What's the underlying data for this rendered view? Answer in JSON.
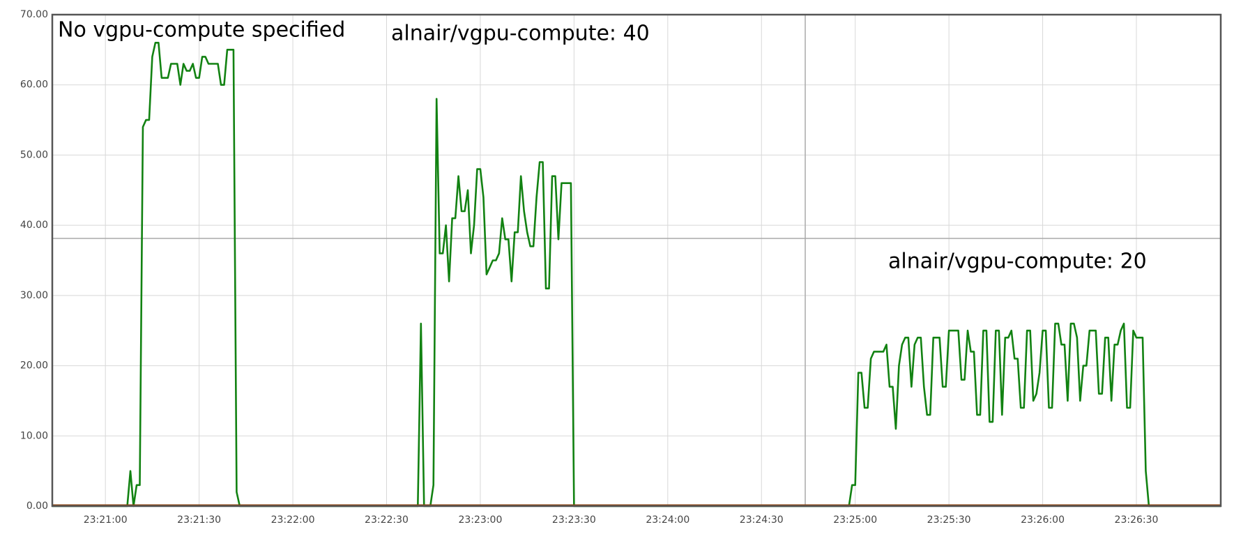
{
  "chart_data": {
    "type": "line",
    "annotations": [
      "No vgpu-compute specified",
      "alnair/vgpu-compute: 40",
      "alnair/vgpu-compute: 20"
    ],
    "xlim": [
      "23:20:43",
      "23:26:57"
    ],
    "xticks": [
      "23:21:00",
      "23:21:30",
      "23:22:00",
      "23:22:30",
      "23:23:00",
      "23:23:30",
      "23:24:00",
      "23:24:30",
      "23:25:00",
      "23:25:30",
      "23:26:00",
      "23:26:30"
    ],
    "ylim": [
      0,
      70
    ],
    "yticks": [
      {
        "value": 0,
        "label": "0.00"
      },
      {
        "value": 10,
        "label": "10.00"
      },
      {
        "value": 20,
        "label": "20.00"
      },
      {
        "value": 30,
        "label": "30.00"
      },
      {
        "value": 40,
        "label": "40.00"
      },
      {
        "value": 50,
        "label": "50.00"
      },
      {
        "value": 60,
        "label": "60.00"
      },
      {
        "value": 70,
        "label": "70.00"
      }
    ],
    "grid": true,
    "x": [
      "23:20:43",
      "23:21:07",
      "23:21:08",
      "23:21:09",
      "23:21:10",
      "23:21:11",
      "23:21:12",
      "23:21:13",
      "23:21:14",
      "23:21:15",
      "23:21:16",
      "23:21:17",
      "23:21:18",
      "23:21:19",
      "23:21:20",
      "23:21:21",
      "23:21:22",
      "23:21:23",
      "23:21:24",
      "23:21:25",
      "23:21:26",
      "23:21:27",
      "23:21:28",
      "23:21:29",
      "23:21:30",
      "23:21:31",
      "23:21:32",
      "23:21:33",
      "23:21:34",
      "23:21:35",
      "23:21:36",
      "23:21:37",
      "23:21:38",
      "23:21:39",
      "23:21:40",
      "23:21:41",
      "23:21:42",
      "23:21:43",
      "23:22:40",
      "23:22:41",
      "23:22:42",
      "23:22:43",
      "23:22:44",
      "23:22:45",
      "23:22:46",
      "23:22:47",
      "23:22:48",
      "23:22:49",
      "23:22:50",
      "23:22:51",
      "23:22:52",
      "23:22:53",
      "23:22:54",
      "23:22:55",
      "23:22:56",
      "23:22:57",
      "23:22:58",
      "23:22:59",
      "23:23:00",
      "23:23:01",
      "23:23:02",
      "23:23:03",
      "23:23:04",
      "23:23:05",
      "23:23:06",
      "23:23:07",
      "23:23:08",
      "23:23:09",
      "23:23:10",
      "23:23:11",
      "23:23:12",
      "23:23:13",
      "23:23:14",
      "23:23:15",
      "23:23:16",
      "23:23:17",
      "23:23:18",
      "23:23:19",
      "23:23:20",
      "23:23:21",
      "23:23:22",
      "23:23:23",
      "23:23:24",
      "23:23:25",
      "23:23:26",
      "23:23:27",
      "23:23:28",
      "23:23:29",
      "23:23:30",
      "23:24:58",
      "23:24:59",
      "23:25:00",
      "23:25:01",
      "23:25:02",
      "23:25:03",
      "23:25:04",
      "23:25:05",
      "23:25:06",
      "23:25:07",
      "23:25:08",
      "23:25:09",
      "23:25:10",
      "23:25:11",
      "23:25:12",
      "23:25:13",
      "23:25:14",
      "23:25:15",
      "23:25:16",
      "23:25:17",
      "23:25:18",
      "23:25:19",
      "23:25:20",
      "23:25:21",
      "23:25:22",
      "23:25:23",
      "23:25:24",
      "23:25:25",
      "23:25:26",
      "23:25:27",
      "23:25:28",
      "23:25:29",
      "23:25:30",
      "23:25:31",
      "23:25:32",
      "23:25:33",
      "23:25:34",
      "23:25:35",
      "23:25:36",
      "23:25:37",
      "23:25:38",
      "23:25:39",
      "23:25:40",
      "23:25:41",
      "23:25:42",
      "23:25:43",
      "23:25:44",
      "23:25:45",
      "23:25:46",
      "23:25:47",
      "23:25:48",
      "23:25:49",
      "23:25:50",
      "23:25:51",
      "23:25:52",
      "23:25:53",
      "23:25:54",
      "23:25:55",
      "23:25:56",
      "23:25:57",
      "23:25:58",
      "23:25:59",
      "23:26:00",
      "23:26:01",
      "23:26:02",
      "23:26:03",
      "23:26:04",
      "23:26:05",
      "23:26:06",
      "23:26:07",
      "23:26:08",
      "23:26:09",
      "23:26:10",
      "23:26:11",
      "23:26:12",
      "23:26:13",
      "23:26:14",
      "23:26:15",
      "23:26:16",
      "23:26:17",
      "23:26:18",
      "23:26:19",
      "23:26:20",
      "23:26:21",
      "23:26:22",
      "23:26:23",
      "23:26:24",
      "23:26:25",
      "23:26:26",
      "23:26:27",
      "23:26:28",
      "23:26:29",
      "23:26:30",
      "23:26:31",
      "23:26:32",
      "23:26:33",
      "23:26:34",
      "23:26:57"
    ],
    "series": [
      {
        "color": "#128212",
        "values": [
          0,
          0,
          5,
          0,
          3,
          3,
          54,
          55,
          55,
          64,
          66,
          66,
          61,
          61,
          61,
          63,
          63,
          63,
          60,
          63,
          62,
          62,
          63,
          61,
          61,
          64,
          64,
          63,
          63,
          63,
          63,
          60,
          60,
          65,
          65,
          65,
          2,
          0,
          0,
          26,
          0,
          0,
          0,
          3,
          58,
          36,
          36,
          40,
          32,
          41,
          41,
          47,
          42,
          42,
          45,
          36,
          40,
          48,
          48,
          44,
          33,
          34,
          35,
          35,
          36,
          41,
          38,
          38,
          32,
          39,
          39,
          47,
          42,
          39,
          37,
          37,
          44,
          49,
          49,
          31,
          31,
          47,
          47,
          38,
          46,
          46,
          46,
          46,
          0,
          0,
          3,
          3,
          19,
          19,
          14,
          14,
          21,
          22,
          22,
          22,
          22,
          23,
          17,
          17,
          11,
          20,
          23,
          24,
          24,
          17,
          23,
          24,
          24,
          17,
          13,
          13,
          24,
          24,
          24,
          17,
          17,
          25,
          25,
          25,
          25,
          18,
          18,
          25,
          22,
          22,
          13,
          13,
          25,
          25,
          12,
          12,
          25,
          25,
          13,
          24,
          24,
          25,
          21,
          21,
          14,
          14,
          25,
          25,
          15,
          16,
          19,
          25,
          25,
          14,
          14,
          26,
          26,
          23,
          23,
          15,
          26,
          26,
          24,
          15,
          20,
          20,
          25,
          25,
          25,
          16,
          16,
          24,
          24,
          15,
          23,
          23,
          25,
          26,
          14,
          14,
          25,
          24,
          24,
          24,
          5,
          0,
          0
        ]
      }
    ]
  }
}
